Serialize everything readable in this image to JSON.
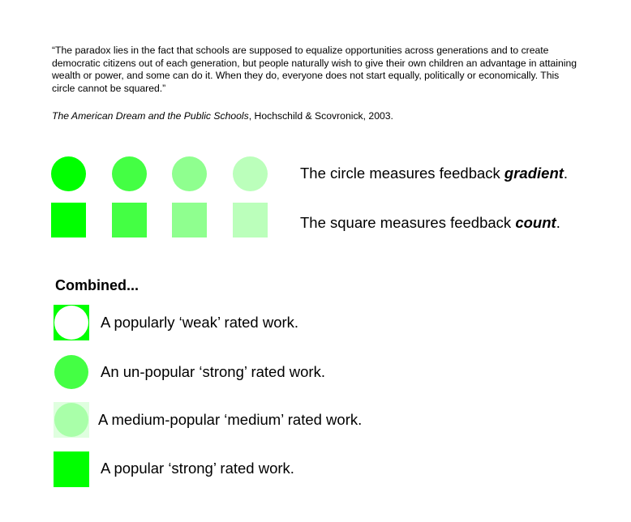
{
  "quote": {
    "text": "“The paradox lies in the fact that schools are supposed to equalize opportunities across generations and to create democratic citizens out of each generation, but people naturally wish to give their own children an advantage in attaining wealth or power, and some can do it. When they do, everyone does not start equally, politically or economically. This circle cannot be squared.”",
    "citation_title": "The American Dream and the Public Schools",
    "citation_rest": ", Hochschild & Scovronick, 2003."
  },
  "colors": {
    "level_1": "#00ff00",
    "level_2": "#44ff44",
    "level_3": "#8fff8f",
    "level_4": "#bbffbb",
    "white": "#ffffff",
    "pale_square": "#dfffdf",
    "pale_circle": "#a9ffa9"
  },
  "legend": {
    "circle_prefix": "The circle measures feedback ",
    "circle_emphasis": "gradient",
    "circle_suffix": ".",
    "square_prefix": "The square measures feedback ",
    "square_emphasis": "count",
    "square_suffix": "."
  },
  "combined": {
    "heading": "Combined...",
    "items": [
      {
        "label": "A popularly ‘weak’ rated work."
      },
      {
        "label": "An un-popular ‘strong’ rated work."
      },
      {
        "label": "A medium-popular ‘medium’ rated work."
      },
      {
        "label": "A popular ‘strong’ rated work."
      }
    ]
  }
}
